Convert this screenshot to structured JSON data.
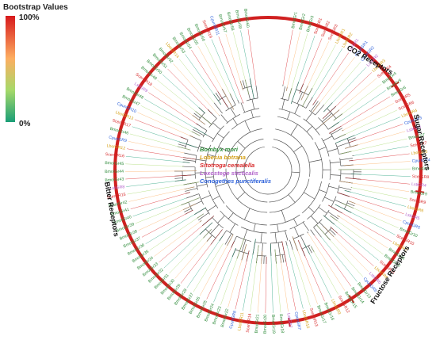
{
  "legend": {
    "title": "Bootstrap Values",
    "max_label": "100%",
    "min_label": "0%",
    "colors": [
      "#d7191c",
      "#fdae61",
      "#a6d96a",
      "#1a9e77"
    ]
  },
  "species": [
    {
      "name": "Bombyx mori",
      "color": "#2e8b3a"
    },
    {
      "name": "Lobesia botrana",
      "color": "#d4a017"
    },
    {
      "name": "Sitotroga cerealella",
      "color": "#d62728"
    },
    {
      "name": "Loxostege sticticalis",
      "color": "#b05fc9"
    },
    {
      "name": "Conogethes punctiferalis",
      "color": "#2b5fd9"
    }
  ],
  "groups": [
    {
      "label": "CO2 Receptors"
    },
    {
      "label": "Sugar Receptors"
    },
    {
      "label": "Fructose Receptors"
    },
    {
      "label": "Bitter Receptors"
    }
  ],
  "ring_color": "#d02020",
  "leaves": [
    {
      "label": "BmorGr1",
      "sp": 0
    },
    {
      "label": "BmorGr2",
      "sp": 0
    },
    {
      "label": "BmorGr3",
      "sp": 0
    },
    {
      "label": "ScerGR1",
      "sp": 2
    },
    {
      "label": "ScerGR2",
      "sp": 2
    },
    {
      "label": "ScerGR3",
      "sp": 2
    },
    {
      "label": "LbotGR1",
      "sp": 1
    },
    {
      "label": "LbotGR2",
      "sp": 1
    },
    {
      "label": "LstiGR1",
      "sp": 3
    },
    {
      "label": "CpunGR1",
      "sp": 4
    },
    {
      "label": "CpunGR2",
      "sp": 4
    },
    {
      "label": "LstiGR2",
      "sp": 3
    },
    {
      "label": "LbotGR3",
      "sp": 1
    },
    {
      "label": "ScerGR4",
      "sp": 2
    },
    {
      "label": "BmorGr4",
      "sp": 0
    },
    {
      "label": "BmorGr5",
      "sp": 0
    },
    {
      "label": "BmorGr6",
      "sp": 0
    },
    {
      "label": "ScerGR5",
      "sp": 2
    },
    {
      "label": "ScerGR6",
      "sp": 2
    },
    {
      "label": "LbotGR4",
      "sp": 1
    },
    {
      "label": "CpunGR3",
      "sp": 4
    },
    {
      "label": "LstiGR3",
      "sp": 3
    },
    {
      "label": "BmorGr7",
      "sp": 0
    },
    {
      "label": "ScerGR7",
      "sp": 2
    },
    {
      "label": "LbotGR5",
      "sp": 1
    },
    {
      "label": "CpunGR4",
      "sp": 4
    },
    {
      "label": "BmorGr8",
      "sp": 0
    },
    {
      "label": "ScerGR8",
      "sp": 2
    },
    {
      "label": "LstiGR4",
      "sp": 3
    },
    {
      "label": "BmorGr9",
      "sp": 0
    },
    {
      "label": "ScerGR9",
      "sp": 2
    },
    {
      "label": "LbotGR6",
      "sp": 1
    },
    {
      "label": "LstiGR5",
      "sp": 3
    },
    {
      "label": "CpunGR5",
      "sp": 4
    },
    {
      "label": "BmorGr10",
      "sp": 0
    },
    {
      "label": "ScerGR10",
      "sp": 2
    },
    {
      "label": "LbotGR7",
      "sp": 1
    },
    {
      "label": "BmorGr11",
      "sp": 0
    },
    {
      "label": "BmorGr12",
      "sp": 0
    },
    {
      "label": "ScerGR11",
      "sp": 2
    },
    {
      "label": "LbotGR8",
      "sp": 1
    },
    {
      "label": "LstiGR6",
      "sp": 3
    },
    {
      "label": "CpunGR6",
      "sp": 4
    },
    {
      "label": "BmorGr13",
      "sp": 0
    },
    {
      "label": "BmorGr14",
      "sp": 0
    },
    {
      "label": "BmorGr15",
      "sp": 0
    },
    {
      "label": "ScerGR12",
      "sp": 2
    },
    {
      "label": "LbotGR9",
      "sp": 1
    },
    {
      "label": "BmorGr16",
      "sp": 0
    },
    {
      "label": "BmorGr17",
      "sp": 0
    },
    {
      "label": "ScerGR13",
      "sp": 2
    },
    {
      "label": "LbotGR10",
      "sp": 1
    },
    {
      "label": "CpunGR7",
      "sp": 4
    },
    {
      "label": "LstiGR7",
      "sp": 3
    },
    {
      "label": "BmorGr18",
      "sp": 0
    },
    {
      "label": "BmorGr19",
      "sp": 0
    },
    {
      "label": "BmorGr20",
      "sp": 0
    },
    {
      "label": "BmorGr21",
      "sp": 0
    },
    {
      "label": "ScerGR14",
      "sp": 2
    },
    {
      "label": "LbotGR11",
      "sp": 1
    },
    {
      "label": "CpunGR8",
      "sp": 4
    },
    {
      "label": "BmorGr22",
      "sp": 0
    },
    {
      "label": "BmorGr23",
      "sp": 0
    },
    {
      "label": "BmorGr24",
      "sp": 0
    },
    {
      "label": "BmorGr25",
      "sp": 0
    },
    {
      "label": "BmorGr26",
      "sp": 0
    },
    {
      "label": "BmorGr27",
      "sp": 0
    },
    {
      "label": "BmorGr28",
      "sp": 0
    },
    {
      "label": "BmorGr29",
      "sp": 0
    },
    {
      "label": "BmorGr30",
      "sp": 0
    },
    {
      "label": "BmorGr31",
      "sp": 0
    },
    {
      "label": "BmorGr32",
      "sp": 0
    },
    {
      "label": "BmorGr33",
      "sp": 0
    },
    {
      "label": "BmorGr34",
      "sp": 0
    },
    {
      "label": "BmorGr35",
      "sp": 0
    },
    {
      "label": "BmorGr36",
      "sp": 0
    },
    {
      "label": "BmorGr37",
      "sp": 0
    },
    {
      "label": "BmorGr38",
      "sp": 0
    },
    {
      "label": "BmorGr39",
      "sp": 0
    },
    {
      "label": "BmorGr40",
      "sp": 0
    },
    {
      "label": "BmorGr41",
      "sp": 0
    },
    {
      "label": "BmorGr42",
      "sp": 0
    },
    {
      "label": "ScerGR15",
      "sp": 2
    },
    {
      "label": "LstiGR8",
      "sp": 3
    },
    {
      "label": "BmorGr43",
      "sp": 0
    },
    {
      "label": "BmorGr44",
      "sp": 0
    },
    {
      "label": "BmorGr45",
      "sp": 0
    },
    {
      "label": "ScerGR16",
      "sp": 2
    },
    {
      "label": "LbotGR12",
      "sp": 1
    },
    {
      "label": "CpunGR9",
      "sp": 4
    },
    {
      "label": "BmorGr46",
      "sp": 0
    },
    {
      "label": "ScerGR17",
      "sp": 2
    },
    {
      "label": "LbotGR13",
      "sp": 1
    },
    {
      "label": "CpunGR10",
      "sp": 4
    },
    {
      "label": "BmorGr47",
      "sp": 0
    },
    {
      "label": "BmorGr48",
      "sp": 0
    },
    {
      "label": "LstiGR9",
      "sp": 3
    },
    {
      "label": "ScerGR18",
      "sp": 2
    },
    {
      "label": "BmorGr49",
      "sp": 0
    },
    {
      "label": "BmorGr50",
      "sp": 0
    },
    {
      "label": "BmorGr51",
      "sp": 0
    },
    {
      "label": "BmorGr52",
      "sp": 0
    },
    {
      "label": "LbotGR14",
      "sp": 1
    },
    {
      "label": "BmorGr53",
      "sp": 0
    },
    {
      "label": "BmorGr54",
      "sp": 0
    },
    {
      "label": "BmorGr55",
      "sp": 0
    },
    {
      "label": "BmorGr56",
      "sp": 0
    },
    {
      "label": "ScerGR19",
      "sp": 2
    },
    {
      "label": "CpunGR11",
      "sp": 4
    },
    {
      "label": "BmorGr57",
      "sp": 0
    },
    {
      "label": "BmorGr58",
      "sp": 0
    },
    {
      "label": "BmorGr59",
      "sp": 0
    },
    {
      "label": "BmorGr60",
      "sp": 0
    }
  ]
}
